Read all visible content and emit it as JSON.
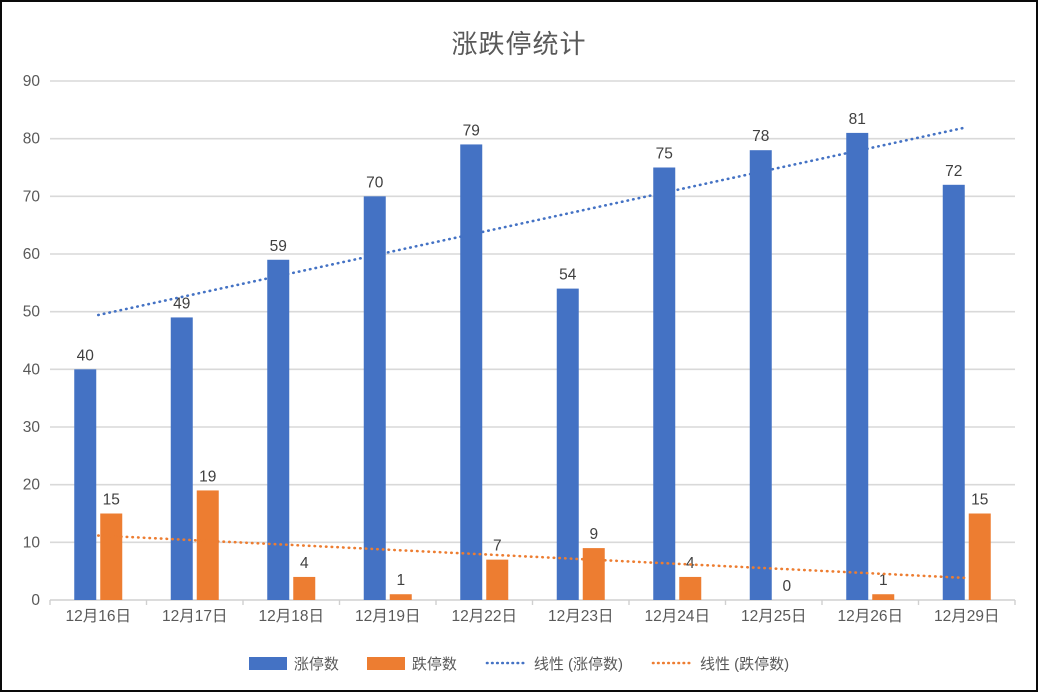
{
  "window": {
    "background": "#ffffff",
    "border_color": "#0a0a0a"
  },
  "chart_data": {
    "type": "bar",
    "title": "涨跌停统计",
    "categories": [
      "12月16日",
      "12月17日",
      "12月18日",
      "12月19日",
      "12月22日",
      "12月23日",
      "12月24日",
      "12月25日",
      "12月26日",
      "12月29日"
    ],
    "series": [
      {
        "name": "涨停数",
        "color": "#4472C4",
        "values": [
          40,
          49,
          59,
          70,
          79,
          54,
          75,
          78,
          81,
          72
        ]
      },
      {
        "name": "跌停数",
        "color": "#ED7D31",
        "values": [
          15,
          19,
          4,
          1,
          7,
          9,
          4,
          0,
          1,
          15
        ]
      }
    ],
    "trendlines": [
      {
        "name": "线性 (涨停数)",
        "for_series": "涨停数",
        "color": "#4472C4",
        "style": "dotted"
      },
      {
        "name": "线性 (跌停数)",
        "for_series": "跌停数",
        "color": "#ED7D31",
        "style": "dotted"
      }
    ],
    "legend": [
      {
        "label": "涨停数",
        "swatch": "bar",
        "color": "#4472C4"
      },
      {
        "label": "跌停数",
        "swatch": "bar",
        "color": "#ED7D31"
      },
      {
        "label": "线性 (涨停数)",
        "swatch": "dotted-line",
        "color": "#4472C4"
      },
      {
        "label": "线性 (跌停数)",
        "swatch": "dotted-line",
        "color": "#ED7D31"
      }
    ],
    "ylim": [
      0,
      90
    ],
    "ytick_step": 10,
    "ytick_labels": [
      "0",
      "10",
      "20",
      "30",
      "40",
      "50",
      "60",
      "70",
      "80",
      "90"
    ],
    "data_labels_shown": true,
    "grid": true,
    "legend_position": "bottom",
    "colors": {
      "gridline": "#D9D9D9",
      "axis_line": "#D0D0D0",
      "axis_text": "#595959",
      "title_text": "#595959",
      "data_label": "#404040"
    }
  }
}
